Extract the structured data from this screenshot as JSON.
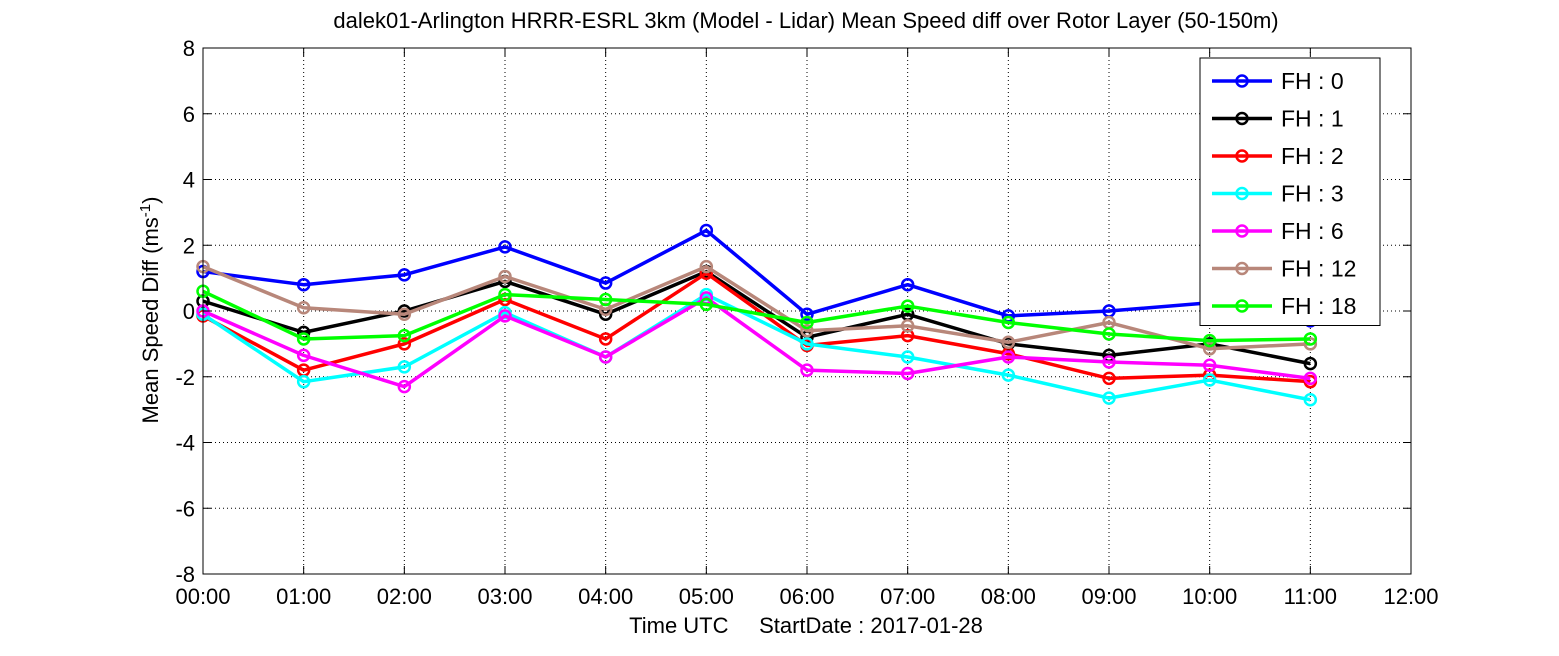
{
  "chart_data": {
    "type": "line",
    "title": "dalek01-Arlington HRRR-ESRL 3km (Model - Lidar) Mean Speed diff over Rotor Layer (50-150m)",
    "xlabel": "Time UTC     StartDate : 2017-01-28",
    "ylabel": "Mean Speed Diff (ms",
    "ylabel_sup": "-1",
    "ylabel_close": ")",
    "x_ticks": [
      "00:00",
      "01:00",
      "02:00",
      "03:00",
      "04:00",
      "05:00",
      "06:00",
      "07:00",
      "08:00",
      "09:00",
      "10:00",
      "11:00",
      "12:00"
    ],
    "xlim": [
      0,
      12
    ],
    "y_ticks": [
      "8",
      "6",
      "4",
      "2",
      "0",
      "-2",
      "-4",
      "-6",
      "-8"
    ],
    "ylim": [
      -8,
      8
    ],
    "grid": true,
    "grid_style": "dotted",
    "legend_position": "top-right",
    "marker": "circle",
    "x": [
      0,
      1,
      2,
      3,
      4,
      5,
      6,
      7,
      8,
      9,
      10,
      11
    ],
    "series": [
      {
        "name": "FH : 0",
        "color": "#0000ff",
        "values": [
          1.2,
          0.8,
          1.1,
          1.95,
          0.85,
          2.45,
          -0.1,
          0.8,
          -0.15,
          0.0,
          0.25,
          -0.3
        ]
      },
      {
        "name": "FH : 1",
        "color": "#000000",
        "values": [
          0.3,
          -0.65,
          0.0,
          0.9,
          -0.1,
          1.2,
          -0.8,
          -0.1,
          -1.0,
          -1.35,
          -1.0,
          -1.6
        ]
      },
      {
        "name": "FH : 2",
        "color": "#ff0000",
        "values": [
          -0.15,
          -1.8,
          -1.0,
          0.35,
          -0.85,
          1.15,
          -1.05,
          -0.75,
          -1.3,
          -2.05,
          -1.95,
          -2.15
        ]
      },
      {
        "name": "FH : 3",
        "color": "#00ffff",
        "values": [
          -0.1,
          -2.15,
          -1.7,
          -0.05,
          -1.4,
          0.5,
          -1.0,
          -1.4,
          -1.95,
          -2.65,
          -2.1,
          -2.7
        ]
      },
      {
        "name": "FH : 6",
        "color": "#ff00ff",
        "values": [
          0.0,
          -1.35,
          -2.3,
          -0.15,
          -1.4,
          0.4,
          -1.8,
          -1.9,
          -1.4,
          -1.55,
          -1.65,
          -2.05
        ]
      },
      {
        "name": "FH : 12",
        "color": "#b8877a",
        "values": [
          1.35,
          0.1,
          -0.1,
          1.05,
          0.05,
          1.35,
          -0.6,
          -0.45,
          -0.95,
          -0.35,
          -1.15,
          -1.0
        ]
      },
      {
        "name": "FH : 18",
        "color": "#00ff00",
        "values": [
          0.6,
          -0.85,
          -0.75,
          0.5,
          0.35,
          0.2,
          -0.35,
          0.15,
          -0.35,
          -0.7,
          -0.9,
          -0.85
        ]
      }
    ]
  }
}
